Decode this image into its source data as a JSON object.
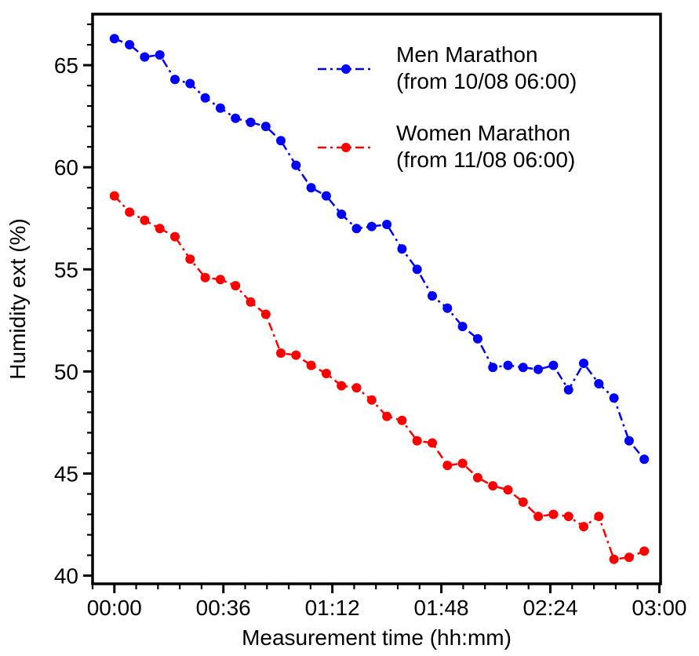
{
  "figure": {
    "background_color": "#ffffff",
    "axis_color": "#000000"
  },
  "chart_data": {
    "type": "line",
    "title": "",
    "xlabel": "Measurement time (hh:mm)",
    "ylabel": "Humidity ext (%)",
    "grid": false,
    "legend_position": "upper right inside plot",
    "x_tick_labels": [
      "00:00",
      "00:36",
      "01:12",
      "01:48",
      "02:24",
      "03:00"
    ],
    "x_tick_minutes": [
      0,
      36,
      72,
      108,
      144,
      180
    ],
    "x_minor_step_minutes": 7.2,
    "y_tick_labels": [
      "40",
      "45",
      "50",
      "55",
      "60",
      "65"
    ],
    "y_ticks": [
      40,
      45,
      50,
      55,
      60,
      65
    ],
    "y_minor_step": 1,
    "xlim_minutes": [
      -7.2,
      180.4
    ],
    "ylim": [
      39.6,
      67.5
    ],
    "x_minutes": [
      0,
      5,
      10,
      15,
      20,
      25,
      30,
      35,
      40,
      45,
      50,
      55,
      60,
      65,
      70,
      75,
      80,
      85,
      90,
      95,
      100,
      105,
      110,
      115,
      120,
      125,
      130,
      135,
      140,
      145,
      150,
      155,
      160,
      165,
      170,
      175
    ],
    "x_times": [
      "00:00",
      "00:05",
      "00:10",
      "00:15",
      "00:20",
      "00:25",
      "00:30",
      "00:35",
      "00:40",
      "00:45",
      "00:50",
      "00:55",
      "01:00",
      "01:05",
      "01:10",
      "01:15",
      "01:20",
      "01:25",
      "01:30",
      "01:35",
      "01:40",
      "01:45",
      "01:50",
      "01:55",
      "02:00",
      "02:05",
      "02:10",
      "02:15",
      "02:20",
      "02:25",
      "02:30",
      "02:35",
      "02:40",
      "02:45",
      "02:50",
      "02:55"
    ],
    "series": [
      {
        "name": "Men Marathon",
        "name_line2": "(from 10/08 06:00)",
        "color": "#0000ff",
        "linestyle": "dashdot",
        "marker": "circle",
        "values": [
          66.3,
          66.0,
          65.4,
          65.5,
          64.3,
          64.1,
          63.4,
          62.9,
          62.4,
          62.2,
          62.0,
          61.3,
          60.1,
          59.0,
          58.6,
          57.7,
          57.0,
          57.1,
          57.2,
          56.0,
          55.0,
          53.7,
          53.1,
          52.2,
          51.6,
          50.2,
          50.3,
          50.2,
          50.1,
          50.3,
          49.1,
          50.4,
          49.4,
          48.7,
          46.6,
          45.7
        ]
      },
      {
        "name": "Women Marathon",
        "name_line2": "(from 11/08 06:00)",
        "color": "#ff0000",
        "linestyle": "dashdot",
        "marker": "circle",
        "values": [
          58.6,
          57.8,
          57.4,
          57.0,
          56.6,
          55.5,
          54.6,
          54.5,
          54.2,
          53.4,
          52.8,
          50.9,
          50.8,
          50.3,
          49.9,
          49.3,
          49.2,
          48.6,
          47.8,
          47.6,
          46.6,
          46.5,
          45.4,
          45.5,
          44.8,
          44.4,
          44.2,
          43.6,
          42.9,
          43.0,
          42.9,
          42.4,
          42.9,
          40.8,
          40.9,
          41.2
        ]
      }
    ]
  }
}
